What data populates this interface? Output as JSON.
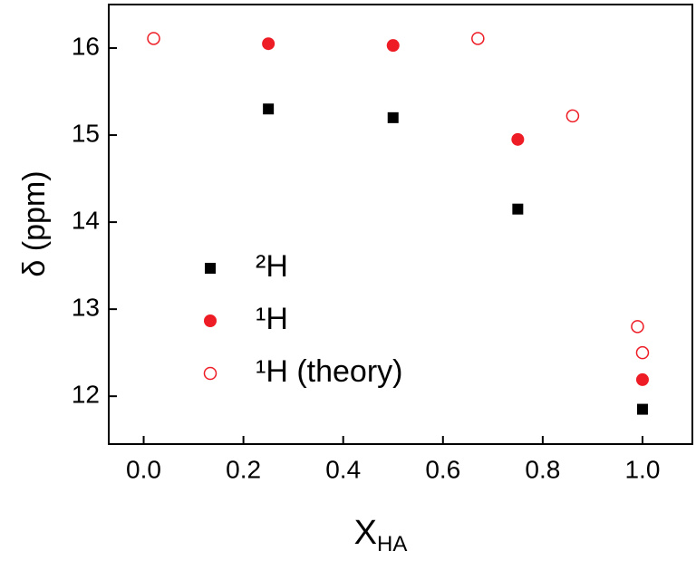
{
  "chart_data": {
    "type": "scatter",
    "xlabel": "X",
    "xlabel_subscript": "HA",
    "ylabel": "δ (ppm)",
    "xlim": [
      -0.07,
      1.1
    ],
    "ylim": [
      11.45,
      16.5
    ],
    "xticks": [
      {
        "value": 0,
        "label": "0.0"
      },
      {
        "value": 0.2,
        "label": "0.2"
      },
      {
        "value": 0.4,
        "label": "0.4"
      },
      {
        "value": 0.6,
        "label": "0.6"
      },
      {
        "value": 0.8,
        "label": "0.8"
      },
      {
        "value": 1,
        "label": "1.0"
      }
    ],
    "yticks": [
      12,
      13,
      14,
      15,
      16
    ],
    "legend": "center-left",
    "series": [
      {
        "name": "²H",
        "color": "#000000",
        "marker": "square",
        "x": [
          0.25,
          0.5,
          0.75,
          1.0
        ],
        "values": [
          15.3,
          15.2,
          14.15,
          11.85
        ]
      },
      {
        "name": "¹H",
        "color": "#ee1c25",
        "marker": "circle",
        "x": [
          0.25,
          0.5,
          0.75,
          1.0
        ],
        "values": [
          16.05,
          16.03,
          14.95,
          12.19
        ]
      },
      {
        "name": "¹H (theory)",
        "color": "#ee1c25",
        "marker": "open-circle",
        "x": [
          0.02,
          0.67,
          0.86,
          0.99,
          1.0
        ],
        "values": [
          16.11,
          16.11,
          15.22,
          12.8,
          12.5
        ]
      }
    ]
  }
}
